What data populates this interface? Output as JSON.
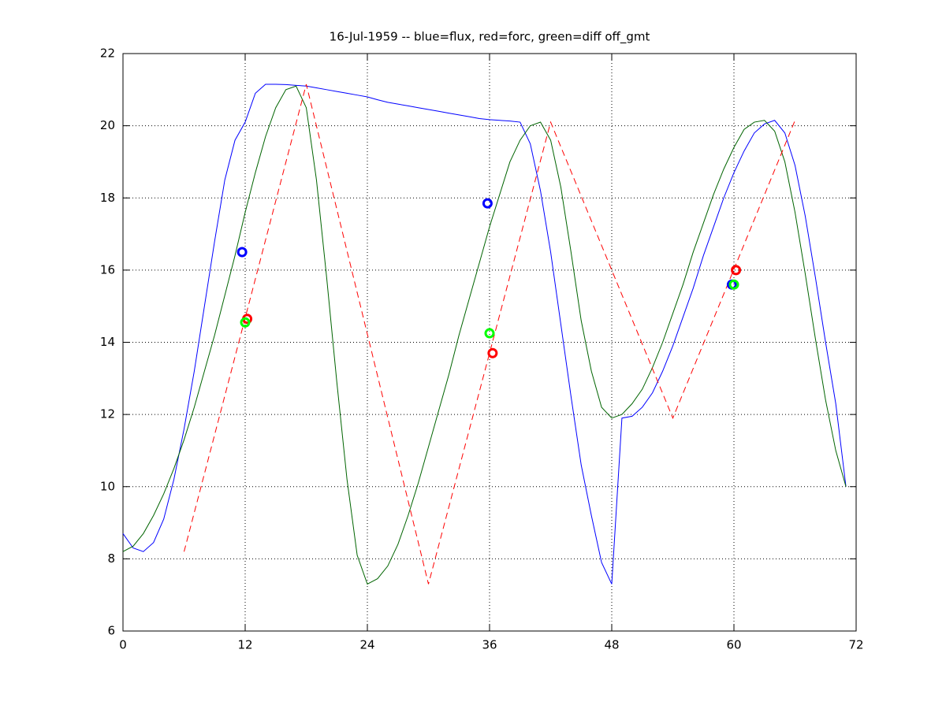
{
  "chart_data": {
    "type": "line",
    "title": "16-Jul-1959 -- blue=flux, red=forc, green=diff off_gmt",
    "xlim": [
      0,
      72
    ],
    "ylim": [
      6,
      22
    ],
    "xticks": [
      0,
      12,
      24,
      36,
      48,
      60,
      72
    ],
    "yticks": [
      6,
      8,
      10,
      12,
      14,
      16,
      18,
      20,
      22
    ],
    "grid": true,
    "series": [
      {
        "color": "#0000ff",
        "style": "solid",
        "x": [
          0,
          1,
          2,
          3,
          4,
          5,
          6,
          7,
          8,
          9,
          10,
          11,
          12,
          13,
          14,
          15,
          16,
          17,
          18,
          19,
          20,
          21,
          22,
          23,
          24,
          25,
          26,
          27,
          28,
          29,
          30,
          31,
          32,
          33,
          34,
          35,
          36,
          37,
          38,
          39,
          40,
          41,
          42,
          43,
          44,
          45,
          46,
          47,
          48,
          49,
          50,
          51,
          52,
          53,
          54,
          55,
          56,
          57,
          58,
          59,
          60,
          61,
          62,
          63,
          64,
          65,
          66,
          67,
          68,
          69,
          70,
          71
        ],
        "values": [
          8.7,
          8.3,
          8.2,
          8.45,
          9.1,
          10.2,
          11.6,
          13.2,
          15.0,
          16.8,
          18.5,
          19.6,
          20.1,
          20.9,
          21.15,
          21.15,
          21.14,
          21.12,
          21.1,
          21.05,
          21.0,
          20.95,
          20.9,
          20.85,
          20.8,
          20.72,
          20.65,
          20.6,
          20.55,
          20.5,
          20.45,
          20.4,
          20.35,
          20.3,
          20.25,
          20.2,
          20.17,
          20.15,
          20.13,
          20.1,
          19.5,
          18.2,
          16.5,
          14.5,
          12.5,
          10.6,
          9.2,
          7.9,
          7.3,
          11.9,
          11.95,
          12.2,
          12.6,
          13.2,
          13.9,
          14.7,
          15.5,
          16.4,
          17.2,
          18.0,
          18.7,
          19.3,
          19.8,
          20.05,
          20.15,
          19.8,
          18.9,
          17.5,
          15.8,
          14.0,
          12.3,
          10.0
        ]
      },
      {
        "color": "#006400",
        "style": "solid",
        "x": [
          0,
          1,
          2,
          3,
          4,
          5,
          6,
          7,
          8,
          9,
          10,
          11,
          12,
          13,
          14,
          15,
          16,
          17,
          18,
          19,
          20,
          21,
          22,
          23,
          24,
          25,
          26,
          27,
          28,
          29,
          30,
          31,
          32,
          33,
          34,
          35,
          36,
          37,
          38,
          39,
          40,
          41,
          42,
          43,
          44,
          45,
          46,
          47,
          48,
          49,
          50,
          51,
          52,
          53,
          54,
          55,
          56,
          57,
          58,
          59,
          60,
          61,
          62,
          63,
          64,
          65,
          66,
          67,
          68,
          69,
          70,
          71
        ],
        "values": [
          8.2,
          8.35,
          8.7,
          9.2,
          9.8,
          10.5,
          11.3,
          12.2,
          13.2,
          14.2,
          15.3,
          16.4,
          17.6,
          18.7,
          19.7,
          20.5,
          21.0,
          21.1,
          20.5,
          18.5,
          15.8,
          12.9,
          10.2,
          8.1,
          7.3,
          7.45,
          7.8,
          8.4,
          9.2,
          10.1,
          11.1,
          12.1,
          13.1,
          14.2,
          15.2,
          16.2,
          17.2,
          18.1,
          19.0,
          19.6,
          20.0,
          20.1,
          19.6,
          18.3,
          16.5,
          14.6,
          13.2,
          12.2,
          11.9,
          12.0,
          12.3,
          12.7,
          13.3,
          14.0,
          14.8,
          15.6,
          16.5,
          17.3,
          18.1,
          18.8,
          19.4,
          19.9,
          20.1,
          20.15,
          19.85,
          19.0,
          17.6,
          15.9,
          14.1,
          12.4,
          11.0,
          10.0
        ]
      },
      {
        "color": "#ff0000",
        "style": "dashed",
        "x": [
          6,
          18,
          30,
          42,
          54,
          66
        ],
        "values": [
          8.2,
          21.15,
          7.3,
          20.1,
          11.9,
          20.15
        ]
      }
    ],
    "markers": [
      {
        "color": "#0000ff",
        "x": [
          11.7,
          35.8,
          59.8
        ],
        "values": [
          16.5,
          17.85,
          15.6
        ]
      },
      {
        "color": "#ff0000",
        "x": [
          12.2,
          36.3,
          60.2
        ],
        "values": [
          14.65,
          13.7,
          16.0
        ]
      },
      {
        "color": "#00ff00",
        "x": [
          12,
          36,
          60
        ],
        "values": [
          14.55,
          14.25,
          15.6
        ]
      }
    ]
  }
}
